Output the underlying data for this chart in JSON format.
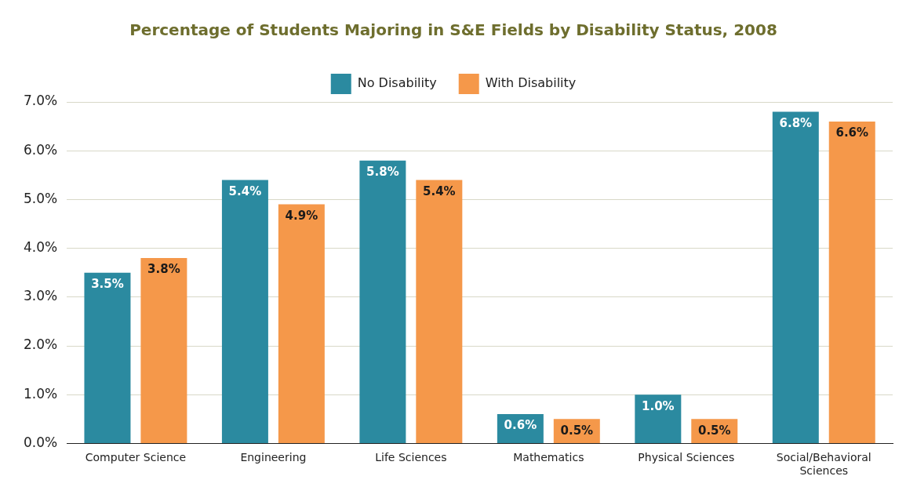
{
  "chart_data": {
    "type": "bar",
    "title": "Percentage of Students Majoring in S&E Fields by Disability Status, 2008",
    "categories": [
      "Computer Science",
      "Engineering",
      "Life Sciences",
      "Mathematics",
      "Physical Sciences",
      "Social/Behavioral Sciences"
    ],
    "series": [
      {
        "name": "No Disability",
        "color": "#2b8aa0",
        "values": [
          3.5,
          5.4,
          5.8,
          0.6,
          1.0,
          6.8
        ],
        "value_labels": [
          "3.5%",
          "5.4%",
          "5.8%",
          "0.6%",
          "1.0%",
          "6.8%"
        ]
      },
      {
        "name": "With Disability",
        "color": "#f5984a",
        "values": [
          3.8,
          4.9,
          5.4,
          0.5,
          0.5,
          6.6
        ],
        "value_labels": [
          "3.8%",
          "4.9%",
          "5.4%",
          "0.5%",
          "0.5%",
          "6.6%"
        ]
      }
    ],
    "ylim": [
      0,
      7
    ],
    "yticks": [
      {
        "value": 0,
        "label": "0.0%"
      },
      {
        "value": 1,
        "label": "1.0%"
      },
      {
        "value": 2,
        "label": "2.0%"
      },
      {
        "value": 3,
        "label": "3.0%"
      },
      {
        "value": 4,
        "label": "4.0%"
      },
      {
        "value": 5,
        "label": "5.0%"
      },
      {
        "value": 6,
        "label": "6.0%"
      },
      {
        "value": 7,
        "label": "7.0%"
      }
    ],
    "grid": "y",
    "legend": "top"
  }
}
